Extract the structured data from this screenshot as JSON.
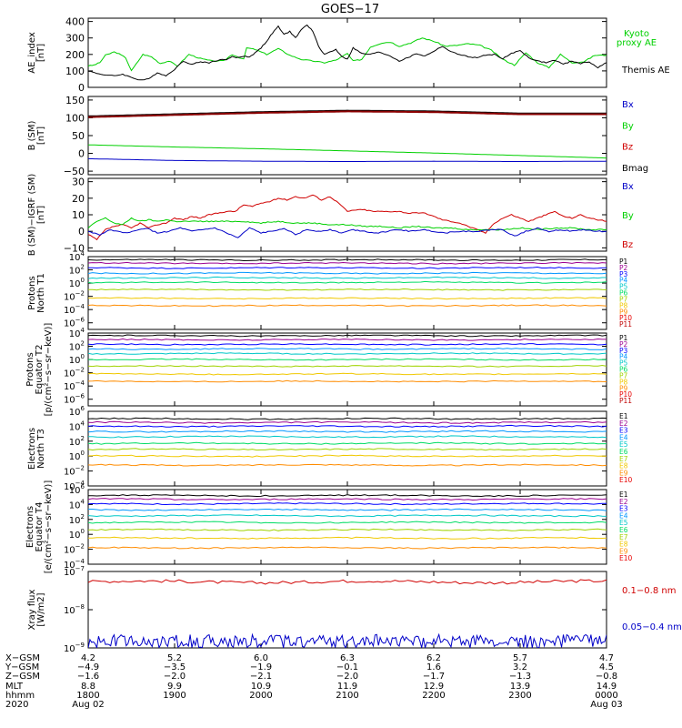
{
  "title": "GOES−17",
  "colors": {
    "black": "#000000",
    "green": "#00d000",
    "blue": "#0000c8",
    "red": "#d00000",
    "darkred": "#800000",
    "bands": [
      "#000000",
      "#9b0090",
      "#0000ff",
      "#0096ff",
      "#00c8c8",
      "#00dc64",
      "#a0d200",
      "#f0c800",
      "#ff8c00",
      "#e80000",
      "#c00000"
    ]
  },
  "chart_data": [
    {
      "type": "line",
      "name": "ae",
      "ylabel": [
        "AE_index",
        "[nT]"
      ],
      "yticks": [
        "400",
        "300",
        "200",
        "100",
        "0"
      ],
      "ytick_values": [
        400,
        300,
        200,
        100,
        0
      ],
      "ylim": [
        0,
        420
      ],
      "legend": [
        {
          "text": "Kyoto",
          "color": "#00d000"
        },
        {
          "text": "proxy AE",
          "color": "#00d000"
        },
        {
          "text": "Themis AE",
          "color": "#000000"
        }
      ],
      "series": [
        {
          "color": "#00d000",
          "x": [
            0,
            4,
            8,
            12,
            18,
            20,
            26,
            30,
            38,
            44,
            50,
            56,
            62,
            70,
            78,
            86,
            94,
            100,
            108,
            110,
            116,
            124,
            132,
            140,
            148,
            156,
            164,
            172,
            180,
            184,
            190,
            196,
            204,
            210,
            216,
            224,
            232,
            240,
            248,
            256,
            264,
            272,
            280,
            288,
            296,
            304,
            312,
            320,
            328,
            336,
            344,
            352,
            360
          ],
          "y": [
            130,
            135,
            150,
            195,
            215,
            210,
            180,
            100,
            200,
            185,
            145,
            160,
            130,
            200,
            175,
            160,
            160,
            200,
            170,
            240,
            230,
            200,
            235,
            195,
            170,
            160,
            150,
            165,
            205,
            160,
            170,
            245,
            270,
            275,
            250,
            270,
            300,
            280,
            250,
            255,
            265,
            255,
            225,
            170,
            135,
            210,
            150,
            120,
            200,
            150,
            155,
            195,
            195
          ]
        },
        {
          "color": "#000000",
          "x": [
            0,
            6,
            12,
            18,
            24,
            30,
            36,
            42,
            48,
            54,
            60,
            66,
            72,
            78,
            84,
            90,
            96,
            100,
            104,
            108,
            112,
            116,
            120,
            124,
            128,
            132,
            136,
            140,
            144,
            148,
            152,
            156,
            160,
            164,
            168,
            172,
            176,
            180,
            184,
            190,
            196,
            202,
            210,
            216,
            222,
            228,
            234,
            240,
            246,
            252,
            258,
            264,
            270,
            276,
            282,
            288,
            294,
            300,
            306,
            312,
            318,
            324,
            330,
            336,
            342,
            348,
            354,
            360
          ],
          "y": [
            100,
            85,
            75,
            70,
            80,
            60,
            45,
            50,
            90,
            70,
            110,
            160,
            140,
            155,
            150,
            165,
            170,
            185,
            180,
            190,
            185,
            210,
            240,
            280,
            330,
            370,
            320,
            340,
            300,
            350,
            380,
            340,
            250,
            200,
            215,
            230,
            190,
            170,
            240,
            205,
            200,
            215,
            190,
            160,
            180,
            205,
            190,
            220,
            250,
            215,
            200,
            185,
            180,
            195,
            200,
            175,
            205,
            225,
            180,
            160,
            150,
            165,
            140,
            160,
            145,
            155,
            120,
            150
          ]
        }
      ]
    },
    {
      "type": "line",
      "name": "bsm",
      "ylabel": [
        "B (SM)",
        "[nT]"
      ],
      "yticks": [
        "150",
        "100",
        "50",
        "0",
        "−50"
      ],
      "ytick_values": [
        150,
        100,
        50,
        0,
        -50
      ],
      "ylim": [
        -60,
        160
      ],
      "legend": [
        {
          "text": "Bx",
          "color": "#0000c8"
        },
        {
          "text": "By",
          "color": "#00d000"
        },
        {
          "text": "Bz",
          "color": "#d00000"
        },
        {
          "text": "Bmag",
          "color": "#000000"
        }
      ],
      "series": [
        {
          "color": "#000000",
          "x": [
            0,
            60,
            120,
            180,
            240,
            300,
            330,
            360
          ],
          "y": [
            104,
            110,
            116,
            120,
            118,
            112,
            112,
            112
          ]
        },
        {
          "color": "#8b0000",
          "x": [
            0,
            60,
            120,
            180,
            240,
            300,
            330,
            360
          ],
          "y": [
            102,
            108,
            114,
            118,
            116,
            110,
            110,
            110
          ]
        },
        {
          "color": "#00d000",
          "x": [
            0,
            60,
            120,
            180,
            240,
            300,
            360
          ],
          "y": [
            24,
            18,
            13,
            7,
            1,
            -6,
            -13
          ]
        },
        {
          "color": "#0000c8",
          "x": [
            0,
            60,
            120,
            180,
            240,
            300,
            360
          ],
          "y": [
            -15,
            -20,
            -22,
            -23,
            -22,
            -23,
            -22
          ]
        }
      ]
    },
    {
      "type": "line",
      "name": "dbsm",
      "ylabel": [
        "B (SM)−IGRF (SM)",
        "[nT]"
      ],
      "yticks": [
        "30",
        "20",
        "10",
        "0",
        "−10"
      ],
      "ytick_values": [
        30,
        20,
        10,
        0,
        -10
      ],
      "ylim": [
        -12,
        32
      ],
      "legend": [
        {
          "text": "Bx",
          "color": "#0000c8"
        },
        {
          "text": "By",
          "color": "#00d000"
        },
        {
          "text": "Bz",
          "color": "#d00000"
        }
      ],
      "series": [
        {
          "color": "#d00000",
          "x": [
            0,
            6,
            12,
            18,
            24,
            30,
            36,
            42,
            48,
            54,
            60,
            66,
            72,
            78,
            84,
            90,
            96,
            102,
            108,
            114,
            120,
            126,
            132,
            138,
            144,
            150,
            156,
            162,
            168,
            174,
            180,
            186,
            192,
            198,
            204,
            210,
            216,
            222,
            228,
            234,
            240,
            246,
            252,
            258,
            264,
            270,
            276,
            282,
            288,
            294,
            300,
            306,
            312,
            318,
            324,
            330,
            336,
            342,
            348,
            354,
            360
          ],
          "y": [
            -2,
            -5,
            1,
            3,
            4,
            2,
            5,
            2,
            4,
            5,
            8,
            7,
            9,
            8,
            10,
            11,
            12,
            12,
            16,
            15,
            17,
            18,
            20,
            19,
            21,
            20,
            22,
            19,
            21,
            17,
            12,
            13,
            13,
            12,
            12,
            12,
            12,
            11,
            11,
            11,
            9,
            7,
            6,
            5,
            3,
            1,
            -1,
            5,
            8,
            10,
            8,
            6,
            8,
            10,
            12,
            9,
            8,
            10,
            8,
            7,
            6
          ]
        },
        {
          "color": "#00d000",
          "x": [
            0,
            6,
            12,
            18,
            24,
            30,
            36,
            42,
            48,
            54,
            60,
            72,
            84,
            96,
            108,
            120,
            132,
            144,
            156,
            168,
            180,
            192,
            204,
            216,
            228,
            240,
            252,
            264,
            276,
            288,
            300,
            312,
            324,
            336,
            348,
            360
          ],
          "y": [
            2,
            6,
            8,
            5,
            4,
            8,
            6,
            7,
            6,
            7,
            6,
            6,
            6,
            6,
            6,
            5,
            6,
            5,
            5,
            4,
            4,
            3,
            3,
            2,
            3,
            2,
            2,
            1,
            1,
            1,
            2,
            1,
            2,
            2,
            1,
            1
          ]
        },
        {
          "color": "#0000c8",
          "x": [
            0,
            8,
            16,
            24,
            32,
            40,
            48,
            56,
            64,
            72,
            80,
            88,
            96,
            104,
            112,
            120,
            128,
            136,
            144,
            152,
            160,
            168,
            176,
            184,
            192,
            200,
            208,
            216,
            224,
            232,
            240,
            248,
            256,
            264,
            272,
            280,
            288,
            296,
            304,
            312,
            320,
            328,
            336,
            344,
            352,
            360
          ],
          "y": [
            0,
            -2,
            1,
            -1,
            0,
            2,
            -1,
            0,
            2,
            0,
            1,
            2,
            -1,
            -4,
            2,
            -1,
            0,
            2,
            -2,
            1,
            0,
            1,
            -1,
            1,
            0,
            -1,
            0,
            1,
            0,
            1,
            0,
            -1,
            0,
            0,
            0,
            1,
            1,
            -3,
            0,
            2,
            0,
            1,
            0,
            1,
            0,
            0
          ]
        }
      ]
    },
    {
      "type": "line",
      "name": "p1",
      "ylabel": [
        "Protons",
        "North T1"
      ],
      "ylabel_right": "",
      "log": true,
      "ylim_exp": [
        -7,
        4
      ],
      "ytick_exps": [
        4,
        2,
        0,
        -2,
        -4,
        -6
      ],
      "legend": [
        "P1",
        "P2",
        "P3",
        "P4",
        "P5",
        "P6",
        "P7",
        "P8",
        "P9",
        "P10",
        "P11"
      ],
      "series": [
        {
          "name": "P1",
          "level": 3.5
        },
        {
          "name": "P2",
          "level": 3.0
        },
        {
          "name": "P3",
          "level": 2.3
        },
        {
          "name": "P4",
          "level": 1.5
        },
        {
          "name": "P5",
          "level": 0.8
        },
        {
          "name": "P6",
          "level": 0.1
        },
        {
          "name": "P7",
          "level": -1.0
        },
        {
          "name": "P8",
          "level": -2.3
        },
        {
          "name": "P9",
          "level": -3.4
        }
      ]
    },
    {
      "type": "line",
      "name": "p2",
      "ylabel": [
        "Protons",
        "Equator T2",
        "[p/(cm²−s−sr−keV)]"
      ],
      "log": true,
      "ylim_exp": [
        -7,
        4
      ],
      "ytick_exps": [
        4,
        2,
        0,
        -2,
        -4,
        -6
      ],
      "legend": [
        "P1",
        "P2",
        "P3",
        "P4",
        "P5",
        "P6",
        "P7",
        "P8",
        "P9",
        "P10",
        "P11"
      ],
      "series": [
        {
          "name": "P1",
          "level": 3.6
        },
        {
          "name": "P2",
          "level": 3.0
        },
        {
          "name": "P3",
          "level": 2.3
        },
        {
          "name": "P4",
          "level": 1.6
        },
        {
          "name": "P5",
          "level": 0.9
        },
        {
          "name": "P6",
          "level": 0.0
        },
        {
          "name": "P7",
          "level": -1.0
        },
        {
          "name": "P8",
          "level": -2.2
        },
        {
          "name": "P9",
          "level": -3.3
        }
      ]
    },
    {
      "type": "line",
      "name": "e1",
      "ylabel": [
        "Electrons",
        "North T3"
      ],
      "log": true,
      "ylim_exp": [
        -4,
        6
      ],
      "ytick_exps": [
        6,
        4,
        2,
        0,
        -2,
        -4
      ],
      "legend": [
        "E1",
        "E2",
        "E3",
        "E4",
        "E5",
        "E6",
        "E7",
        "E8",
        "E9",
        "E10"
      ],
      "series": [
        {
          "name": "E1",
          "level": 5.0
        },
        {
          "name": "E2",
          "level": 4.5
        },
        {
          "name": "E3",
          "level": 4.0
        },
        {
          "name": "E4",
          "level": 3.3
        },
        {
          "name": "E5",
          "level": 2.6
        },
        {
          "name": "E6",
          "level": 1.7
        },
        {
          "name": "E7",
          "level": 0.9
        },
        {
          "name": "E8",
          "level": 0.0
        },
        {
          "name": "E9",
          "level": -1.2
        }
      ]
    },
    {
      "type": "line",
      "name": "e2",
      "ylabel": [
        "Electrons",
        "Equator T4",
        "[e/(cm²−s−sr−keV)]"
      ],
      "log": true,
      "ylim_exp": [
        -4,
        6
      ],
      "ytick_exps": [
        6,
        4,
        2,
        0,
        -2,
        -4
      ],
      "legend": [
        "E1",
        "E2",
        "E3",
        "E4",
        "E5",
        "E6",
        "E7",
        "E8",
        "E9",
        "E10"
      ],
      "series": [
        {
          "name": "E1",
          "level": 5.2
        },
        {
          "name": "E2",
          "level": 4.7
        },
        {
          "name": "E3",
          "level": 4.1
        },
        {
          "name": "E4",
          "level": 3.3
        },
        {
          "name": "E5",
          "level": 2.5
        },
        {
          "name": "E6",
          "level": 1.6
        },
        {
          "name": "E7",
          "level": 0.6
        },
        {
          "name": "E8",
          "level": -0.5
        },
        {
          "name": "E9",
          "level": -1.8
        }
      ]
    },
    {
      "type": "line",
      "name": "xray",
      "ylabel": [
        "Xray flux",
        "[W/m2]"
      ],
      "log": true,
      "ylim_exp": [
        -9,
        -7
      ],
      "ytick_exps": [
        -7,
        -8,
        -9
      ],
      "legend": [
        {
          "text": "0.1−0.8 nm",
          "color": "#d00000"
        },
        {
          "text": "0.05−0.4 nm",
          "color": "#0000c8"
        }
      ],
      "series": [
        {
          "name": "0.1−0.8 nm",
          "color": "#d00000",
          "level": -7.27
        },
        {
          "name": "0.05−0.4 nm",
          "color": "#0000c8",
          "level": -8.85
        }
      ]
    }
  ],
  "xaxis": {
    "labels": [
      "X−GSM",
      "Y−GSM",
      "Z−GSM",
      "MLT",
      "hhmm",
      "2020"
    ],
    "columns": [
      {
        "x": 0,
        "values": [
          "4.2",
          "−4.9",
          "−1.6",
          "8.8",
          "1800",
          "Aug 02"
        ]
      },
      {
        "x": 60,
        "values": [
          "5.2",
          "−3.5",
          "−2.0",
          "9.9",
          "1900",
          ""
        ]
      },
      {
        "x": 120,
        "values": [
          "6.0",
          "−1.9",
          "−2.1",
          "10.9",
          "2000",
          ""
        ]
      },
      {
        "x": 180,
        "values": [
          "6.3",
          "−0.1",
          "−2.0",
          "11.9",
          "2100",
          ""
        ]
      },
      {
        "x": 240,
        "values": [
          "6.2",
          "1.6",
          "−1.7",
          "12.9",
          "2200",
          ""
        ]
      },
      {
        "x": 300,
        "values": [
          "5.7",
          "3.2",
          "−1.3",
          "13.9",
          "2300",
          ""
        ]
      },
      {
        "x": 360,
        "values": [
          "4.7",
          "4.5",
          "−0.8",
          "14.9",
          "0000",
          "Aug 03"
        ]
      }
    ]
  }
}
